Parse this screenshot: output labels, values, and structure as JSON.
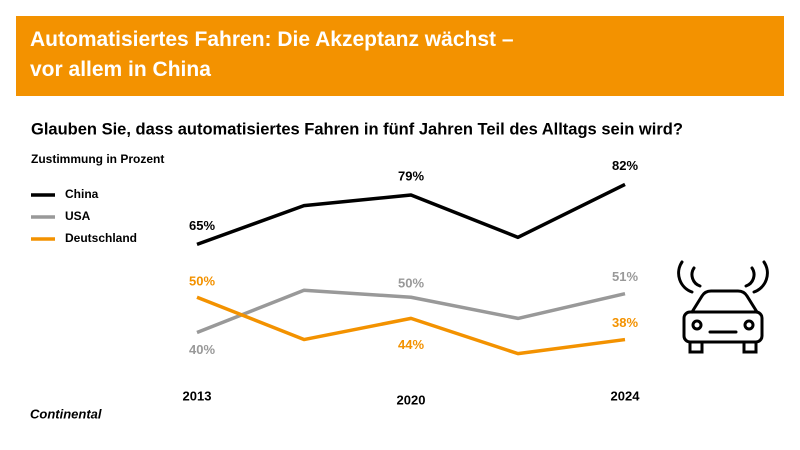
{
  "chart_data": {
    "type": "line",
    "title": [
      "Automatisiertes Fahren: Die Akzeptanz wächst –",
      "vor allem in China"
    ],
    "subtitle": "Glauben Sie, dass automatisiertes Fahren in fünf Jahren Teil des Alltags sein wird?",
    "y_label": "Zustimmung in Prozent",
    "source": "Continental",
    "categories": [
      "2013",
      null,
      "2020",
      null,
      "2024"
    ],
    "ylim": [
      20,
      100
    ],
    "series": [
      {
        "name": "China",
        "color": "#000000",
        "values": [
          65,
          76,
          79,
          67,
          82
        ],
        "value_labels": [
          "65%",
          null,
          "79%",
          null,
          "82%"
        ]
      },
      {
        "name": "USA",
        "color": "#999999",
        "values": [
          40,
          52,
          50,
          44,
          51
        ],
        "value_labels": [
          "40%",
          null,
          "50%",
          null,
          "51%"
        ]
      },
      {
        "name": "Deutschland",
        "color": "#f39200",
        "values": [
          50,
          38,
          44,
          34,
          38
        ],
        "value_labels": [
          "50%",
          null,
          "44%",
          null,
          "38%"
        ]
      }
    ]
  }
}
